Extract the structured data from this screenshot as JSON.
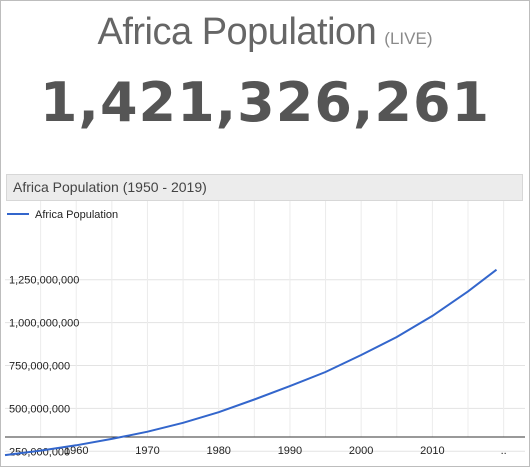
{
  "header": {
    "title": "Africa Population",
    "live_tag": "(LIVE)",
    "counter": "1,421,326,261"
  },
  "chart_data": {
    "type": "line",
    "title": "Africa Population (1950 - 2019)",
    "xlabel": "",
    "ylabel": "",
    "legend_position": "top-left",
    "grid": true,
    "series": [
      {
        "name": "Africa Population",
        "color": "#3366cc",
        "x": [
          1950,
          1955,
          1960,
          1965,
          1970,
          1975,
          1980,
          1985,
          1990,
          1995,
          2000,
          2005,
          2010,
          2015,
          2019
        ],
        "values": [
          228000000,
          254000000,
          285000000,
          322000000,
          364000000,
          416000000,
          478000000,
          552000000,
          630000000,
          712000000,
          811000000,
          916000000,
          1039000000,
          1182000000,
          1308000000
        ]
      }
    ],
    "x_ticks": [
      "1960",
      "1970",
      "1980",
      "1990",
      "2000",
      "2010",
      ".."
    ],
    "y_ticks": [
      "250,000,000",
      "500,000,000",
      "750,000,000",
      "1,000,000,000",
      "1,250,000,000"
    ],
    "xlim": [
      1950,
      2019
    ],
    "ylim": [
      200000000,
      1400000000
    ]
  }
}
